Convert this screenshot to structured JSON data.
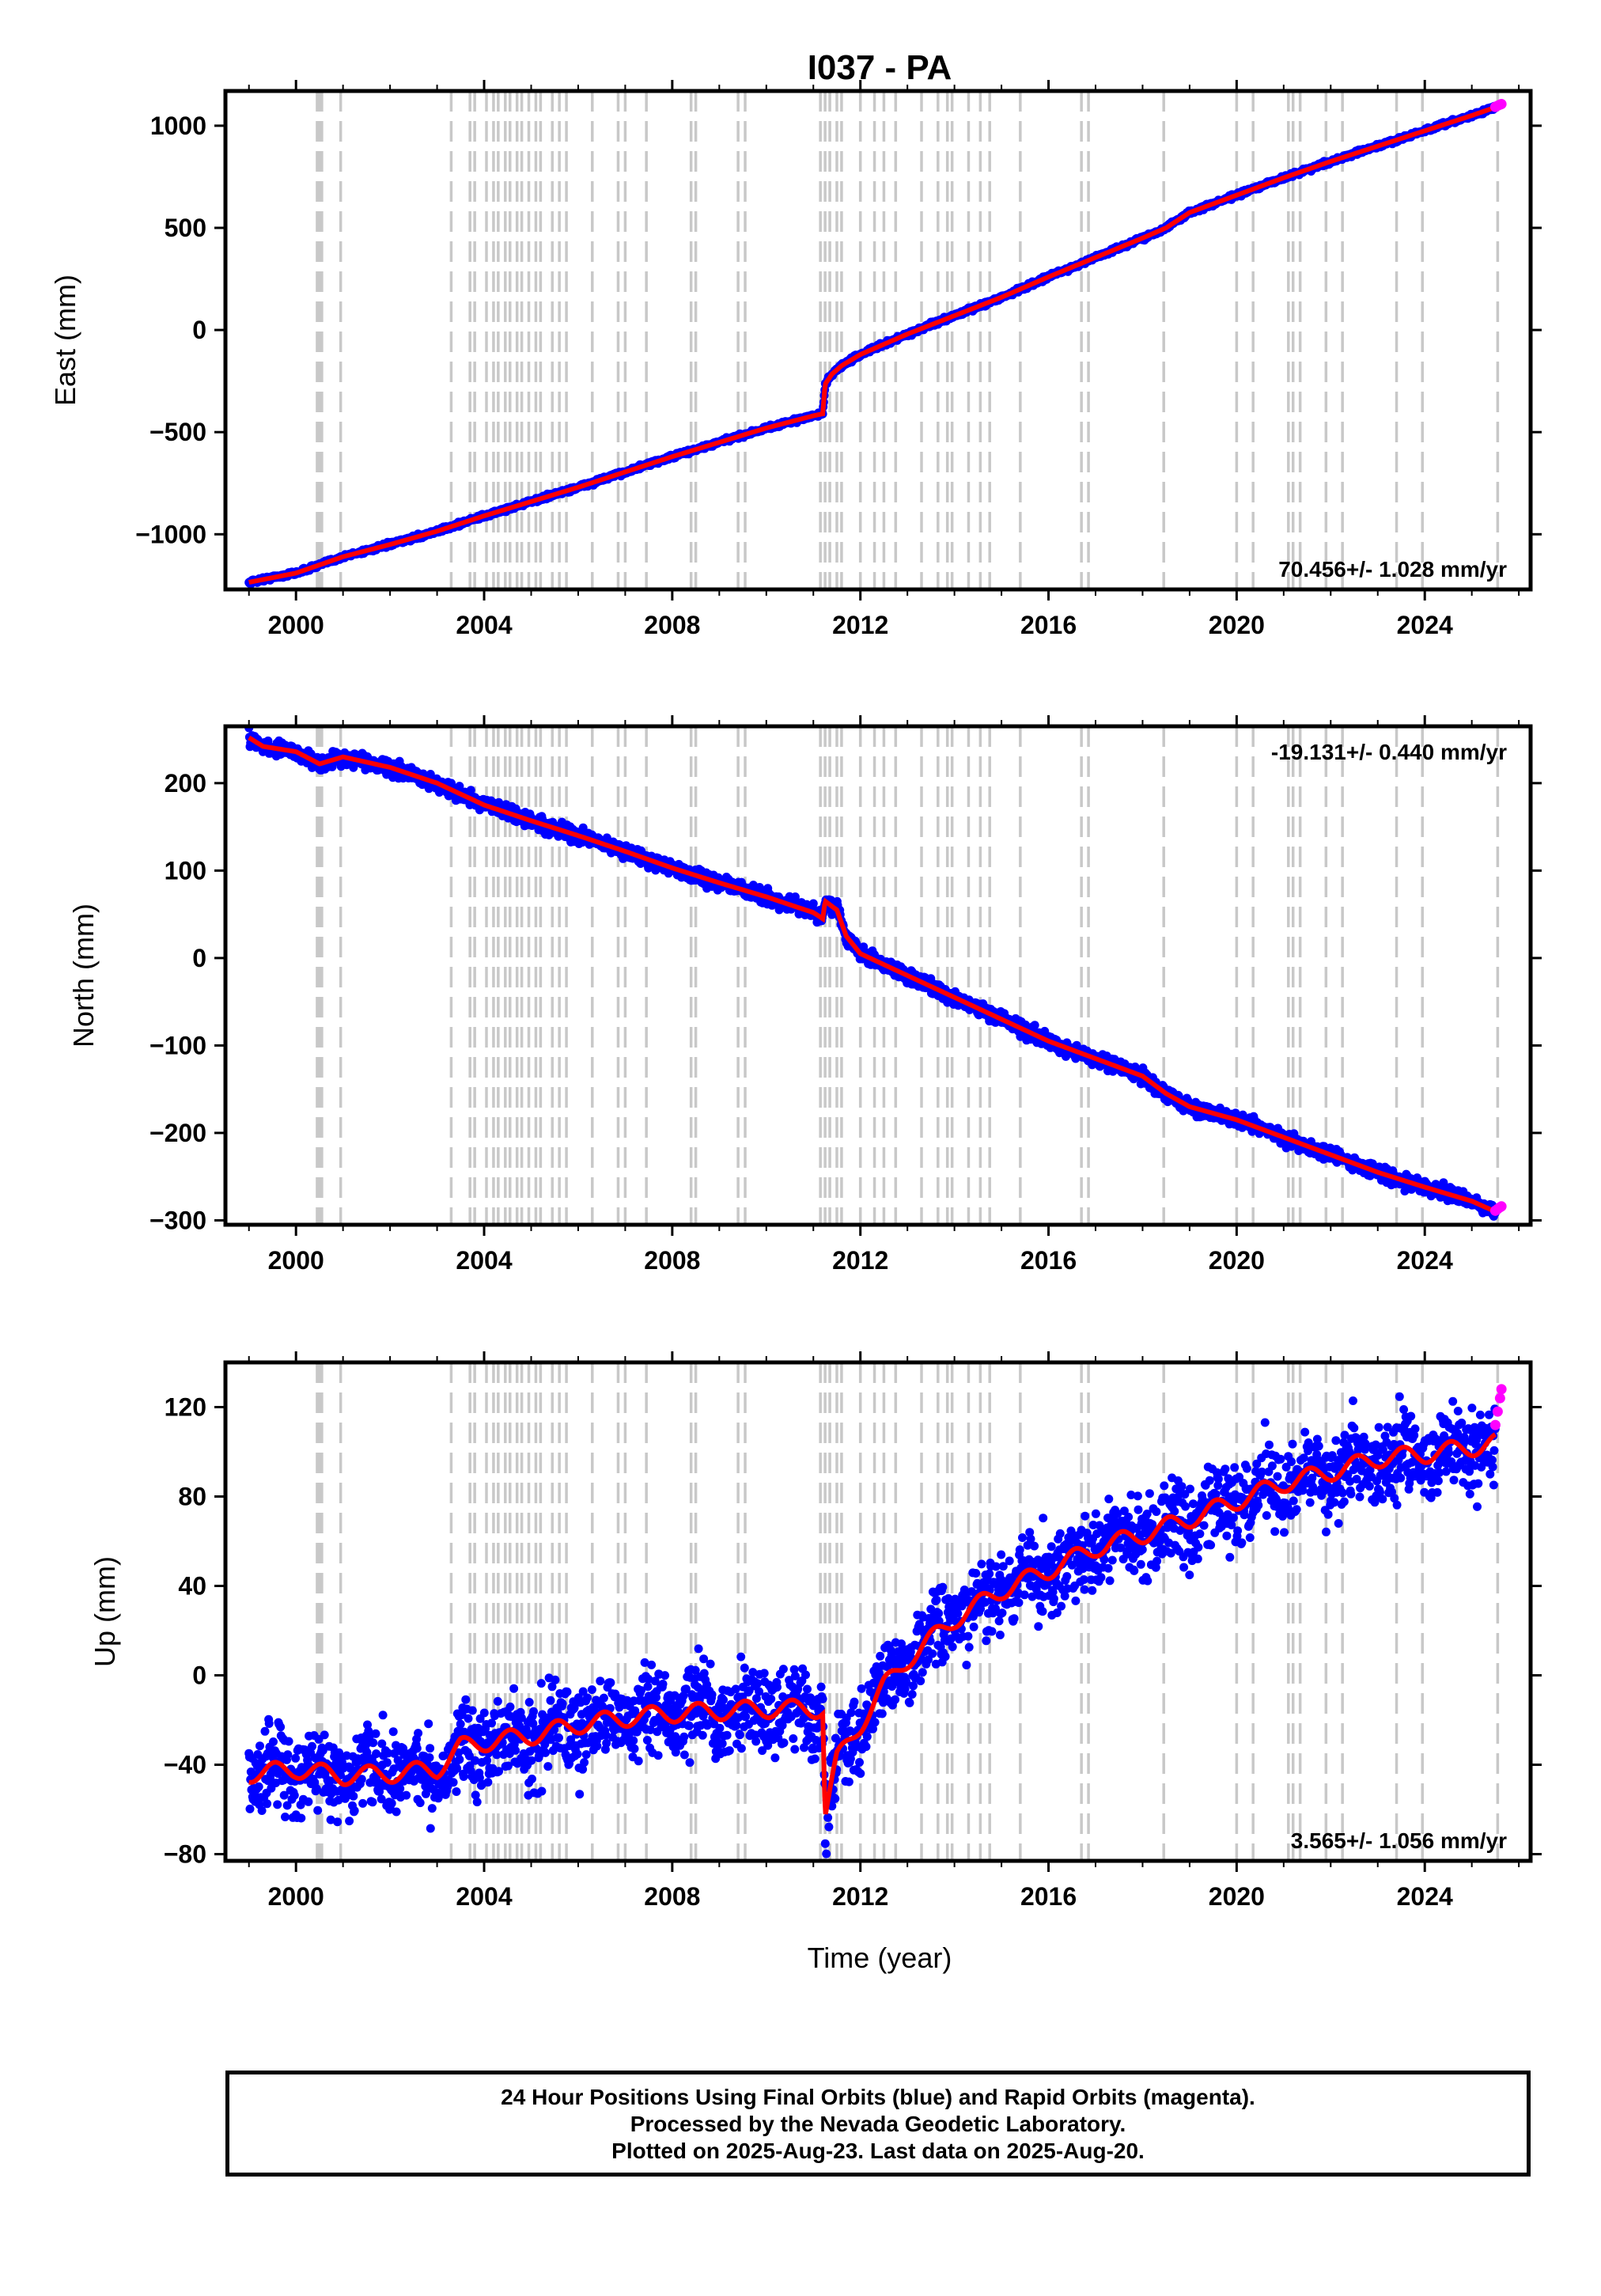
{
  "title": "I037 - PA",
  "xlabel": "Time (year)",
  "footer": {
    "line1": "24 Hour Positions Using Final Orbits (blue) and Rapid Orbits (magenta).",
    "line2": "Processed by the Nevada Geodetic Laboratory.",
    "line3": "Plotted on 2025-Aug-23. Last data on 2025-Aug-20."
  },
  "colors": {
    "final": "#0000ff",
    "rapid": "#ff00ff",
    "model": "#ff0000",
    "steps": "#c8c8c8"
  },
  "step_epochs": [
    2000.45,
    2000.5,
    2000.55,
    2000.95,
    2003.3,
    2003.7,
    2003.8,
    2004.05,
    2004.2,
    2004.3,
    2004.45,
    2004.55,
    2004.7,
    2004.8,
    2004.95,
    2005.1,
    2005.2,
    2005.45,
    2005.6,
    2005.75,
    2006.3,
    2006.85,
    2007.0,
    2007.45,
    2008.4,
    2008.5,
    2009.4,
    2009.55,
    2011.15,
    2011.25,
    2011.35,
    2011.5,
    2011.6,
    2012.0,
    2012.3,
    2012.5,
    2012.75,
    2013.3,
    2013.65,
    2013.85,
    2013.95,
    2014.3,
    2014.55,
    2014.75,
    2015.4,
    2016.7,
    2016.85,
    2018.45,
    2020.0,
    2020.35,
    2021.1,
    2021.2,
    2021.35,
    2021.9,
    2022.25,
    2023.4,
    2023.95,
    2025.55
  ],
  "chart_data": [
    {
      "type": "scatter",
      "component": "East",
      "ylabel": "East (mm)",
      "xlim": [
        1998.5,
        2026.25
      ],
      "ylim": [
        -1270,
        1170
      ],
      "xticks": [
        2000,
        2004,
        2008,
        2012,
        2016,
        2020,
        2024
      ],
      "yticks": [
        -1000,
        -500,
        0,
        500,
        1000
      ],
      "rate_label": "70.456+/- 1.028 mm/yr",
      "rate_position": "bottom-right",
      "series": [
        {
          "name": "Final Orbits",
          "color": "#0000ff",
          "x": [
            1999.0,
            2000.0,
            2001.0,
            2002.0,
            2003.0,
            2004.0,
            2005.0,
            2006.0,
            2007.0,
            2008.0,
            2009.0,
            2010.0,
            2011.0,
            2011.2,
            2011.25,
            2011.4,
            2011.6,
            2012.0,
            2012.5,
            2013.0,
            2014.0,
            2015.0,
            2016.0,
            2017.0,
            2018.0,
            2018.5,
            2019.0,
            2020.0,
            2021.0,
            2022.0,
            2023.0,
            2024.0,
            2025.0,
            2025.5
          ],
          "y": [
            -1235,
            -1190,
            -1110,
            -1050,
            -985,
            -910,
            -840,
            -770,
            -695,
            -620,
            -550,
            -480,
            -420,
            -410,
            -265,
            -215,
            -175,
            -120,
            -70,
            -20,
            70,
            160,
            260,
            355,
            450,
            500,
            575,
            660,
            745,
            825,
            900,
            975,
            1050,
            1090
          ]
        },
        {
          "name": "Rapid Orbits",
          "color": "#ff00ff",
          "x": [
            2025.5,
            2025.55,
            2025.6,
            2025.63
          ],
          "y": [
            1092,
            1098,
            1103,
            1106
          ]
        }
      ]
    },
    {
      "type": "scatter",
      "component": "North",
      "ylabel": "North (mm)",
      "xlim": [
        1998.5,
        2026.25
      ],
      "ylim": [
        -305,
        265
      ],
      "xticks": [
        2000,
        2004,
        2008,
        2012,
        2016,
        2020,
        2024
      ],
      "yticks": [
        -300,
        -200,
        -100,
        0,
        100,
        200
      ],
      "rate_label": "-19.131+/- 0.440 mm/yr",
      "rate_position": "top-right",
      "series": [
        {
          "name": "Final Orbits",
          "color": "#0000ff",
          "x": [
            1999.0,
            1999.3,
            2000.0,
            2000.5,
            2001.0,
            2002.0,
            2003.0,
            2004.0,
            2005.0,
            2006.0,
            2007.0,
            2008.0,
            2009.0,
            2010.0,
            2011.0,
            2011.2,
            2011.25,
            2011.5,
            2011.7,
            2012.0,
            2013.0,
            2014.0,
            2015.0,
            2016.0,
            2017.0,
            2018.0,
            2018.5,
            2019.0,
            2020.0,
            2021.0,
            2022.0,
            2023.0,
            2024.0,
            2025.0,
            2025.5
          ],
          "y": [
            252,
            242,
            236,
            222,
            230,
            218,
            200,
            175,
            157,
            140,
            122,
            103,
            86,
            70,
            52,
            45,
            65,
            55,
            25,
            5,
            -20,
            -45,
            -70,
            -95,
            -115,
            -135,
            -155,
            -170,
            -185,
            -205,
            -225,
            -245,
            -262,
            -278,
            -290
          ]
        },
        {
          "name": "Rapid Orbits",
          "color": "#ff00ff",
          "x": [
            2025.5,
            2025.55,
            2025.6,
            2025.63
          ],
          "y": [
            -289,
            -287,
            -285,
            -284
          ]
        }
      ]
    },
    {
      "type": "scatter",
      "component": "Up",
      "ylabel": "Up (mm)",
      "xlim": [
        1998.5,
        2026.25
      ],
      "ylim": [
        -83,
        140
      ],
      "xticks": [
        2000,
        2004,
        2008,
        2012,
        2016,
        2020,
        2024
      ],
      "yticks": [
        -80,
        -40,
        0,
        40,
        80,
        120
      ],
      "rate_label": "3.565+/- 1.056 mm/yr",
      "rate_position": "bottom-right",
      "series": [
        {
          "name": "Final Orbits",
          "color": "#0000ff",
          "x": [
            1999.0,
            2000.0,
            2001.0,
            2002.0,
            2003.0,
            2003.5,
            2004.0,
            2005.0,
            2006.0,
            2007.0,
            2008.0,
            2009.0,
            2010.0,
            2011.0,
            2011.2,
            2011.25,
            2011.5,
            2012.0,
            2012.5,
            2013.0,
            2014.0,
            2015.0,
            2016.0,
            2017.0,
            2018.0,
            2019.0,
            2020.0,
            2021.0,
            2022.0,
            2023.0,
            2024.0,
            2025.0,
            2025.5
          ],
          "y": [
            -44,
            -42,
            -45,
            -44,
            -42,
            -32,
            -30,
            -27,
            -22,
            -19,
            -17,
            -16,
            -15,
            -15,
            -15,
            -62,
            -38,
            -22,
            -5,
            7,
            25,
            38,
            47,
            57,
            63,
            70,
            78,
            86,
            91,
            97,
            99,
            102,
            104
          ]
        },
        {
          "name": "Rapid Orbits",
          "color": "#ff00ff",
          "x": [
            2025.5,
            2025.55,
            2025.6,
            2025.63
          ],
          "y": [
            112,
            118,
            124,
            128
          ]
        }
      ]
    }
  ]
}
